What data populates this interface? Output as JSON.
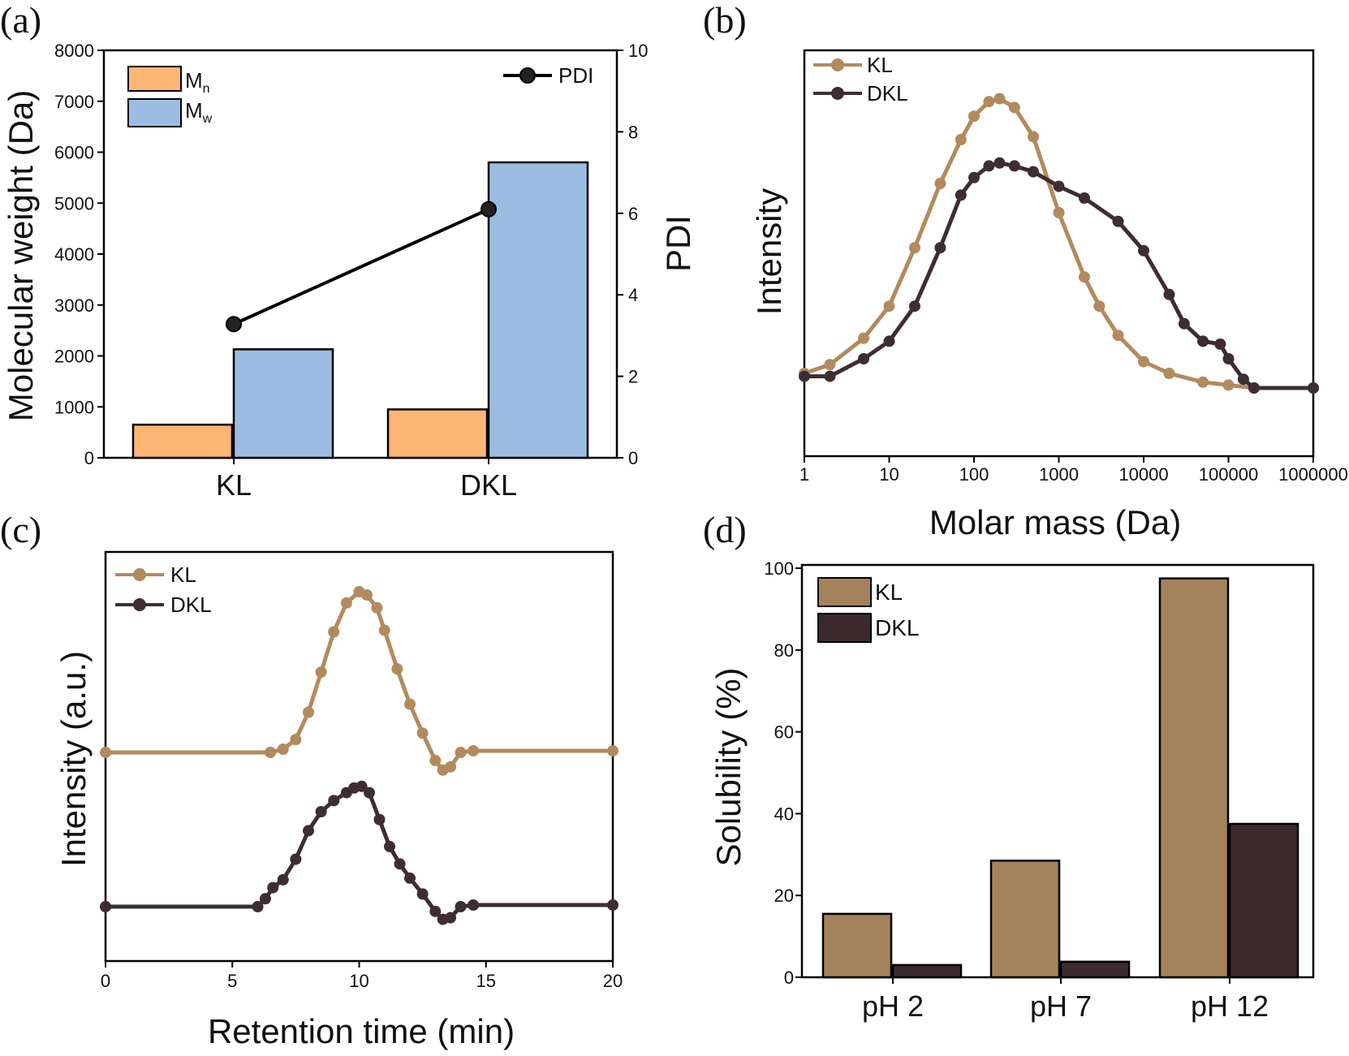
{
  "panels": {
    "a": "(a)",
    "b": "(b)",
    "c": "(c)",
    "d": "(d)"
  },
  "colors": {
    "mn": "#fdb576",
    "mw": "#9dbce2",
    "kl": "#b28a5d",
    "dkl": "#3e2d33",
    "kl_bar": "#a4835c",
    "dkl_bar": "#3a2a2e"
  },
  "chart_data": [
    {
      "id": "a",
      "type": "bar",
      "title": "",
      "categories": [
        "KL",
        "DKL"
      ],
      "series": [
        {
          "name": "Mn",
          "label_main": "M",
          "label_sub": "n",
          "values": [
            650,
            950
          ]
        },
        {
          "name": "Mw",
          "label_main": "M",
          "label_sub": "w",
          "values": [
            2130,
            5800
          ]
        }
      ],
      "line_series": {
        "name": "PDI",
        "label": "PDI",
        "values": [
          3.28,
          6.1
        ]
      },
      "ylabel": "Molecular weight (Da)",
      "y2label": "PDI",
      "ylim": [
        0,
        8000
      ],
      "y2lim": [
        0,
        10
      ],
      "yticks": [
        "0",
        "1000",
        "2000",
        "3000",
        "4000",
        "5000",
        "6000",
        "7000",
        "8000"
      ],
      "y2ticks": [
        "0",
        "2",
        "4",
        "6",
        "8",
        "10"
      ]
    },
    {
      "id": "b",
      "type": "line",
      "xlabel": "Molar mass (Da)",
      "ylabel": "Intensity",
      "xscale": "log",
      "xlim": [
        1,
        1000000
      ],
      "xticks": [
        "1",
        "10",
        "100",
        "1000",
        "10000",
        "100000",
        "1000000"
      ],
      "legend": [
        "KL",
        "DKL"
      ],
      "series": [
        {
          "name": "KL",
          "x": [
            1,
            2,
            5,
            10,
            20,
            40,
            70,
            100,
            150,
            200,
            300,
            500,
            1000,
            2000,
            3000,
            5000,
            10000,
            20000,
            50000,
            100000,
            200000,
            1000000
          ],
          "y": [
            0.05,
            0.08,
            0.17,
            0.28,
            0.48,
            0.7,
            0.85,
            0.93,
            0.98,
            0.99,
            0.96,
            0.86,
            0.6,
            0.38,
            0.28,
            0.18,
            0.09,
            0.05,
            0.02,
            0.01,
            0.0,
            0.0
          ]
        },
        {
          "name": "DKL",
          "x": [
            1,
            2,
            5,
            10,
            20,
            40,
            70,
            100,
            150,
            200,
            300,
            500,
            1000,
            2000,
            5000,
            10000,
            20000,
            30000,
            50000,
            80000,
            100000,
            150000,
            200000,
            1000000
          ],
          "y": [
            0.04,
            0.04,
            0.1,
            0.16,
            0.28,
            0.48,
            0.66,
            0.72,
            0.76,
            0.77,
            0.76,
            0.74,
            0.69,
            0.65,
            0.57,
            0.47,
            0.32,
            0.22,
            0.16,
            0.15,
            0.1,
            0.03,
            0.0,
            0.0
          ]
        }
      ]
    },
    {
      "id": "c",
      "type": "line",
      "xlabel": "Retention time (min)",
      "ylabel": "Intensity (a.u.)",
      "xlim": [
        0,
        20
      ],
      "xticks": [
        "0",
        "5",
        "10",
        "15",
        "20"
      ],
      "legend": [
        "KL",
        "DKL"
      ],
      "series": [
        {
          "name": "KL",
          "x": [
            0,
            6.5,
            7.0,
            7.5,
            8.0,
            8.5,
            9.0,
            9.5,
            10.0,
            10.3,
            10.7,
            11.0,
            11.5,
            12.0,
            12.5,
            13.0,
            13.3,
            13.6,
            14.0,
            14.5,
            20
          ],
          "y": [
            0.0,
            0.0,
            0.02,
            0.08,
            0.25,
            0.5,
            0.75,
            0.93,
            1.0,
            0.98,
            0.9,
            0.76,
            0.52,
            0.3,
            0.12,
            -0.05,
            -0.11,
            -0.09,
            0.0,
            0.01,
            0.01
          ]
        },
        {
          "name": "DKL",
          "x": [
            0,
            6.0,
            6.3,
            6.6,
            7.0,
            7.5,
            8.0,
            8.5,
            9.0,
            9.5,
            9.8,
            10.1,
            10.4,
            10.8,
            11.2,
            11.6,
            12.0,
            12.5,
            13.0,
            13.3,
            13.6,
            14.0,
            14.5,
            20
          ],
          "y": [
            0.0,
            0.0,
            0.05,
            0.12,
            0.17,
            0.3,
            0.48,
            0.6,
            0.67,
            0.72,
            0.75,
            0.76,
            0.72,
            0.55,
            0.38,
            0.27,
            0.18,
            0.08,
            -0.03,
            -0.08,
            -0.07,
            0.0,
            0.01,
            0.01
          ]
        }
      ]
    },
    {
      "id": "d",
      "type": "bar",
      "categories": [
        "pH 2",
        "pH 7",
        "pH 12"
      ],
      "series": [
        {
          "name": "KL",
          "values": [
            15.5,
            28.5,
            97.5
          ]
        },
        {
          "name": "DKL",
          "values": [
            3.0,
            3.8,
            37.5
          ]
        }
      ],
      "ylabel": "Solubility (%)",
      "ylim": [
        0,
        100
      ],
      "yticks": [
        "0",
        "20",
        "40",
        "60",
        "80",
        "100"
      ],
      "legend": [
        "KL",
        "DKL"
      ]
    }
  ]
}
